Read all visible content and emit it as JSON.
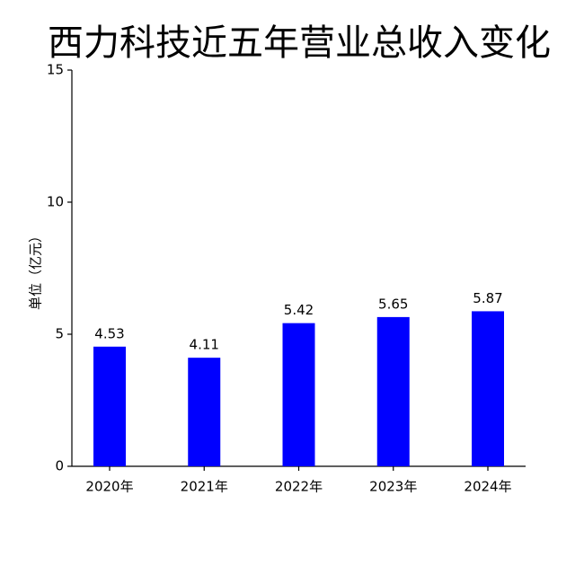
{
  "chart_data": {
    "type": "bar",
    "title": "西力科技近五年营业总收入变化",
    "y_label": "单位（亿元）",
    "categories": [
      "2020年",
      "2021年",
      "2022年",
      "2023年",
      "2024年"
    ],
    "values": [
      4.53,
      4.11,
      5.42,
      5.65,
      5.87
    ],
    "color": "#0000ff",
    "ylim": [
      0,
      15
    ],
    "yticks": [
      0,
      5,
      10,
      15
    ],
    "data_labels": true
  }
}
